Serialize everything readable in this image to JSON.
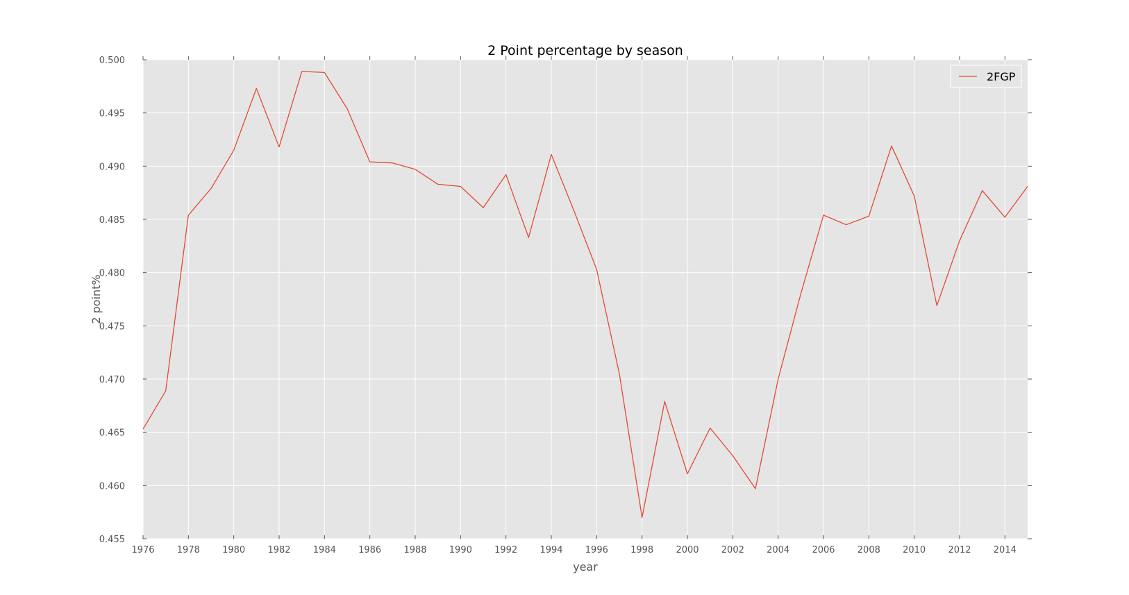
{
  "chart_data": {
    "type": "line",
    "title": "2 Point percentage by season",
    "xlabel": "year",
    "ylabel": "2 point%",
    "xlim": [
      1976,
      2015
    ],
    "ylim": [
      0.455,
      0.5
    ],
    "xticks": [
      "1976",
      "1978",
      "1980",
      "1982",
      "1984",
      "1986",
      "1988",
      "1990",
      "1992",
      "1994",
      "1996",
      "1998",
      "2000",
      "2002",
      "2004",
      "2006",
      "2008",
      "2010",
      "2012",
      "2014"
    ],
    "yticks": [
      "0.455",
      "0.460",
      "0.465",
      "0.470",
      "0.475",
      "0.480",
      "0.485",
      "0.490",
      "0.495",
      "0.500"
    ],
    "grid": true,
    "legend_position": "top-right",
    "series": [
      {
        "name": "2FGP",
        "color": "#e24a33",
        "x": [
          1976,
          1977,
          1978,
          1979,
          1980,
          1981,
          1982,
          1983,
          1984,
          1985,
          1986,
          1987,
          1988,
          1989,
          1990,
          1991,
          1992,
          1993,
          1994,
          1995,
          1996,
          1997,
          1998,
          1999,
          2000,
          2001,
          2002,
          2003,
          2004,
          2005,
          2006,
          2007,
          2008,
          2009,
          2010,
          2011,
          2012,
          2013,
          2014,
          2015
        ],
        "y": [
          0.4653,
          0.4689,
          0.4854,
          0.4879,
          0.4915,
          0.4973,
          0.4918,
          0.4989,
          0.4988,
          0.4954,
          0.4904,
          0.4903,
          0.4897,
          0.4883,
          0.4881,
          0.4861,
          0.4892,
          0.4833,
          0.4911,
          0.4858,
          0.4803,
          0.4705,
          0.457,
          0.4679,
          0.4611,
          0.4654,
          0.4628,
          0.4597,
          0.47,
          0.478,
          0.4854,
          0.4845,
          0.4853,
          0.4919,
          0.4872,
          0.4769,
          0.483,
          0.4877,
          0.4852,
          0.4881
        ]
      }
    ]
  }
}
